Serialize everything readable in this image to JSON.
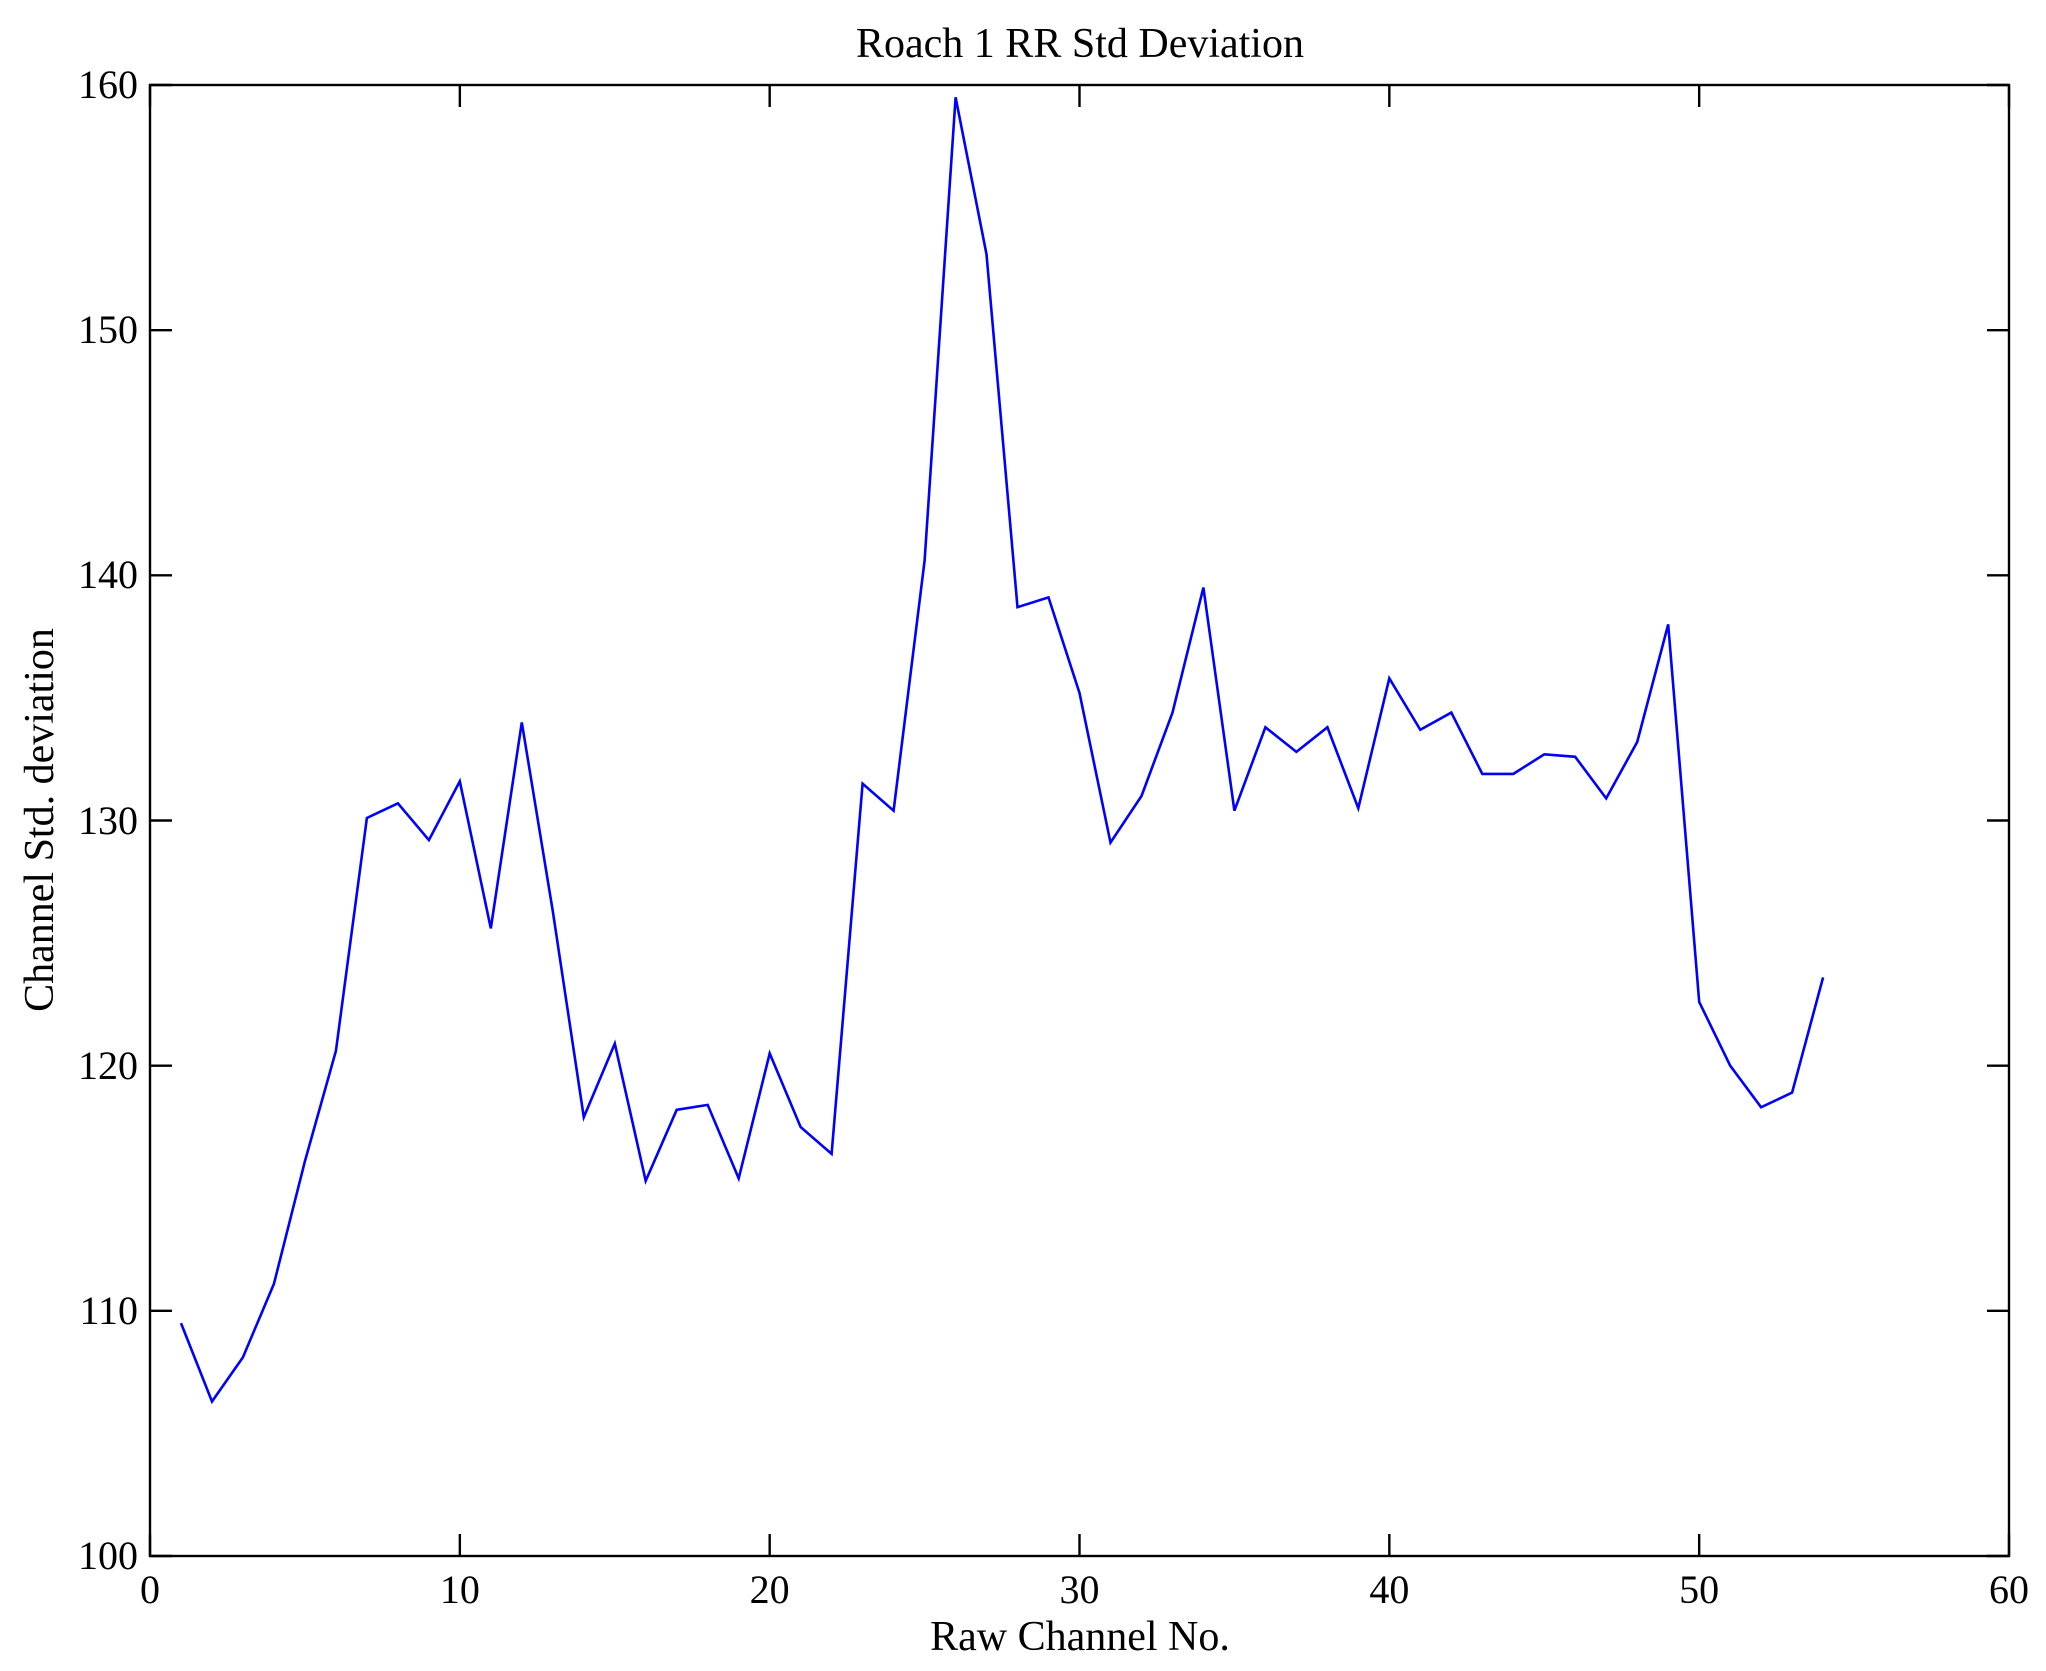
{
  "chart_data": {
    "type": "line",
    "title": "Roach 1 RR Std Deviation",
    "xlabel": "Raw Channel No.",
    "ylabel": "Channel Std. deviation",
    "xlim": [
      0,
      60
    ],
    "ylim": [
      100,
      160
    ],
    "x_ticks": [
      0,
      10,
      20,
      30,
      40,
      50,
      60
    ],
    "y_ticks": [
      100,
      110,
      120,
      130,
      140,
      150,
      160
    ],
    "grid": false,
    "legend_position": "none",
    "line_color": "#0000ff",
    "axis_color": "#000000",
    "series_name": "Channel Std. deviation",
    "x": [
      1,
      2,
      3,
      4,
      5,
      6,
      7,
      8,
      9,
      10,
      11,
      12,
      13,
      14,
      15,
      16,
      17,
      18,
      19,
      20,
      21,
      22,
      23,
      24,
      25,
      26,
      27,
      28,
      29,
      30,
      31,
      32,
      33,
      34,
      35,
      36,
      37,
      38,
      39,
      40,
      41,
      42,
      43,
      44,
      45,
      46,
      47,
      48,
      49,
      50,
      51,
      52,
      53,
      54
    ],
    "y": [
      109.5,
      106.3,
      108.1,
      111.1,
      116.1,
      120.6,
      130.1,
      130.7,
      129.2,
      131.6,
      125.6,
      134.0,
      126.3,
      117.9,
      120.9,
      115.3,
      118.2,
      118.4,
      115.4,
      120.5,
      117.5,
      116.4,
      131.5,
      130.4,
      140.6,
      159.5,
      153.1,
      138.7,
      139.1,
      135.2,
      129.1,
      131.0,
      134.4,
      139.5,
      130.4,
      133.8,
      132.8,
      133.8,
      130.5,
      135.8,
      133.7,
      134.4,
      131.9,
      131.9,
      132.7,
      132.6,
      130.9,
      133.2,
      138.0,
      122.6,
      120.0,
      118.3,
      118.9,
      123.6
    ]
  }
}
